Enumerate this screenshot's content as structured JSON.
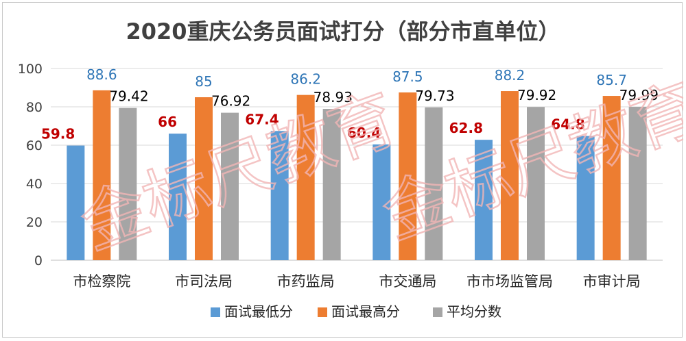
{
  "chart_data": {
    "type": "bar",
    "title": "2020重庆公务员面试打分（部分市直单位）",
    "categories": [
      "市检察院",
      "市司法局",
      "市药监局",
      "市交通局",
      "市市场监管局",
      "市审计局"
    ],
    "series": [
      {
        "name": "面试最低分",
        "color": "#5b9bd5",
        "label_color": "#c00000",
        "values": [
          59.8,
          66,
          67.4,
          60.4,
          62.8,
          64.8
        ]
      },
      {
        "name": "面试最高分",
        "color": "#ed7d31",
        "label_color": "#2e75b6",
        "values": [
          88.6,
          85,
          86.2,
          87.5,
          88.2,
          85.7
        ]
      },
      {
        "name": "平均分数",
        "color": "#a5a5a5",
        "label_color": "#000000",
        "values": [
          79.42,
          76.92,
          78.93,
          79.73,
          79.92,
          79.99
        ]
      }
    ],
    "yticks": [
      0,
      20,
      40,
      60,
      80,
      100
    ],
    "ylim": [
      0,
      100
    ],
    "grid": true,
    "legend_position": "bottom"
  },
  "watermarks": [
    "金标尺教育",
    "金标尺教育"
  ]
}
